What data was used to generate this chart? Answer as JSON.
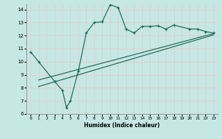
{
  "xlabel": "Humidex (Indice chaleur)",
  "xlim": [
    -0.5,
    23.5
  ],
  "ylim": [
    6,
    14.4
  ],
  "yticks": [
    6,
    7,
    8,
    9,
    10,
    11,
    12,
    13,
    14
  ],
  "xticks": [
    0,
    1,
    2,
    3,
    4,
    5,
    6,
    7,
    8,
    9,
    10,
    11,
    12,
    13,
    14,
    15,
    16,
    17,
    18,
    19,
    20,
    21,
    22,
    23
  ],
  "bg_color": "#c5e8e4",
  "grid_color": "#e8c8c8",
  "line_color": "#1a6b5a",
  "line1_x": [
    0,
    1,
    3,
    4,
    4.5,
    5,
    6,
    7,
    8,
    9,
    10,
    11,
    12,
    13,
    14,
    15,
    16,
    17,
    18,
    20,
    21,
    22,
    23
  ],
  "line1_y": [
    10.75,
    10.0,
    8.5,
    7.8,
    6.5,
    7.0,
    9.3,
    12.2,
    13.0,
    13.05,
    14.35,
    14.15,
    12.5,
    12.2,
    12.7,
    12.7,
    12.75,
    12.5,
    12.8,
    12.5,
    12.5,
    12.3,
    12.2
  ],
  "line2_x": [
    1,
    23
  ],
  "line2_y": [
    8.6,
    12.15
  ],
  "line3_x": [
    1,
    23
  ],
  "line3_y": [
    8.1,
    12.05
  ]
}
